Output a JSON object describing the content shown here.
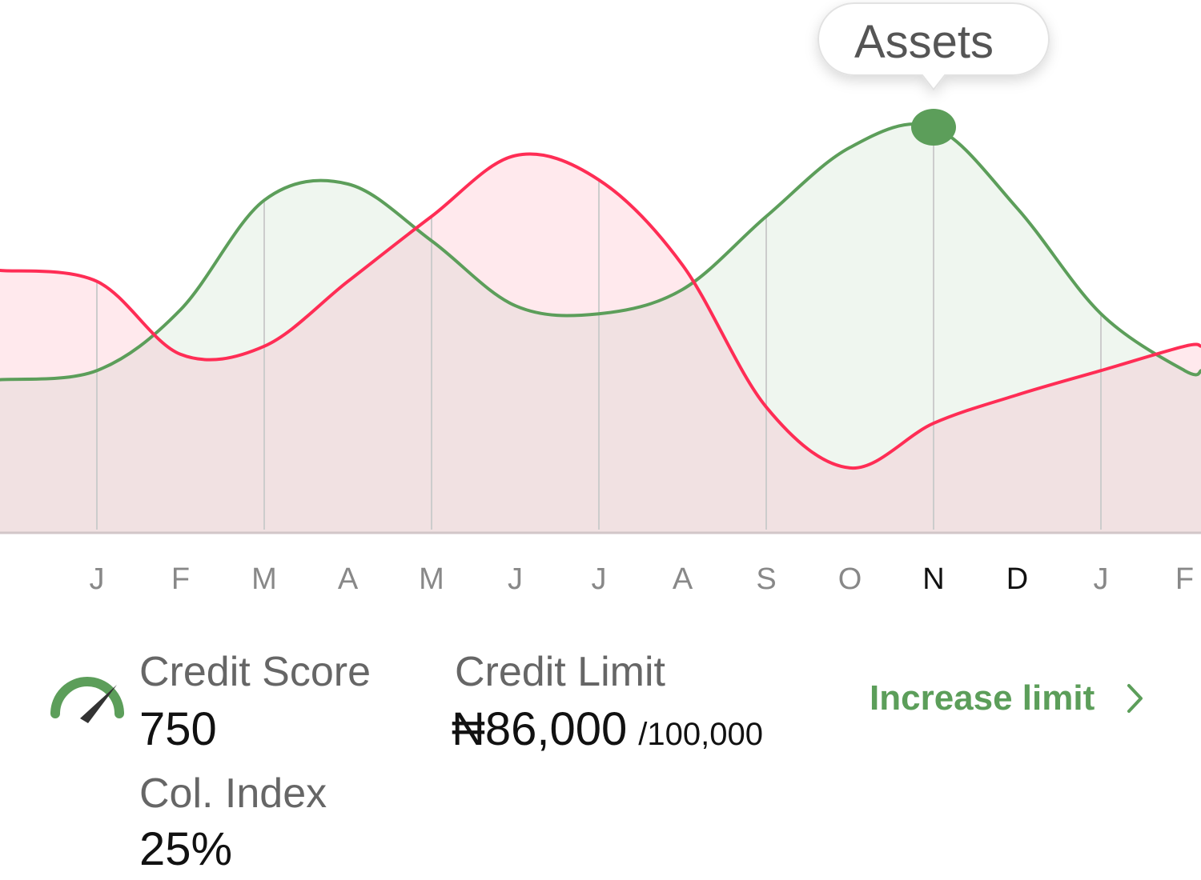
{
  "colors": {
    "assets": "#5c9e5a",
    "liabilities": "#ff2d55",
    "assets_fill": "#eef6ee",
    "liabilities_fill": "#ffe8ec",
    "overlap_fill": "#f1e1e2",
    "grid": "#cccccc",
    "accent": "#5c9e5a"
  },
  "chart_data": {
    "type": "area",
    "categories": [
      "J",
      "F",
      "M",
      "A",
      "M",
      "J",
      "J",
      "A",
      "S",
      "O",
      "N",
      "D",
      "J",
      "F"
    ],
    "highlighted_categories": [
      "N",
      "D"
    ],
    "series": [
      {
        "name": "Assets",
        "color": "#5c9e5a",
        "values": [
          0.4,
          0.55,
          0.82,
          0.86,
          0.72,
          0.56,
          0.54,
          0.6,
          0.78,
          0.95,
          1.0,
          0.8,
          0.54,
          0.4
        ]
      },
      {
        "name": "",
        "color": "#ff2d55",
        "values": [
          0.62,
          0.44,
          0.46,
          0.62,
          0.78,
          0.93,
          0.87,
          0.66,
          0.31,
          0.16,
          0.27,
          0.34,
          0.4,
          0.46
        ]
      }
    ],
    "tooltip": {
      "label": "Assets",
      "category_index": 10,
      "series": "Assets"
    },
    "ylim": [
      0,
      1.2
    ],
    "grid": true,
    "legend": "none"
  },
  "stats": {
    "credit_score_label": "Credit Score",
    "credit_score_value": "750",
    "col_index_label": "Col. Index",
    "col_index_value": "25%",
    "credit_limit_label": "Credit Limit",
    "credit_limit_value": "₦86,000",
    "credit_limit_max": "/100,000"
  },
  "actions": {
    "increase_limit_label": "Increase limit"
  },
  "icons": {
    "gauge": "speedometer-icon",
    "chevron": "chevron-right-icon"
  }
}
